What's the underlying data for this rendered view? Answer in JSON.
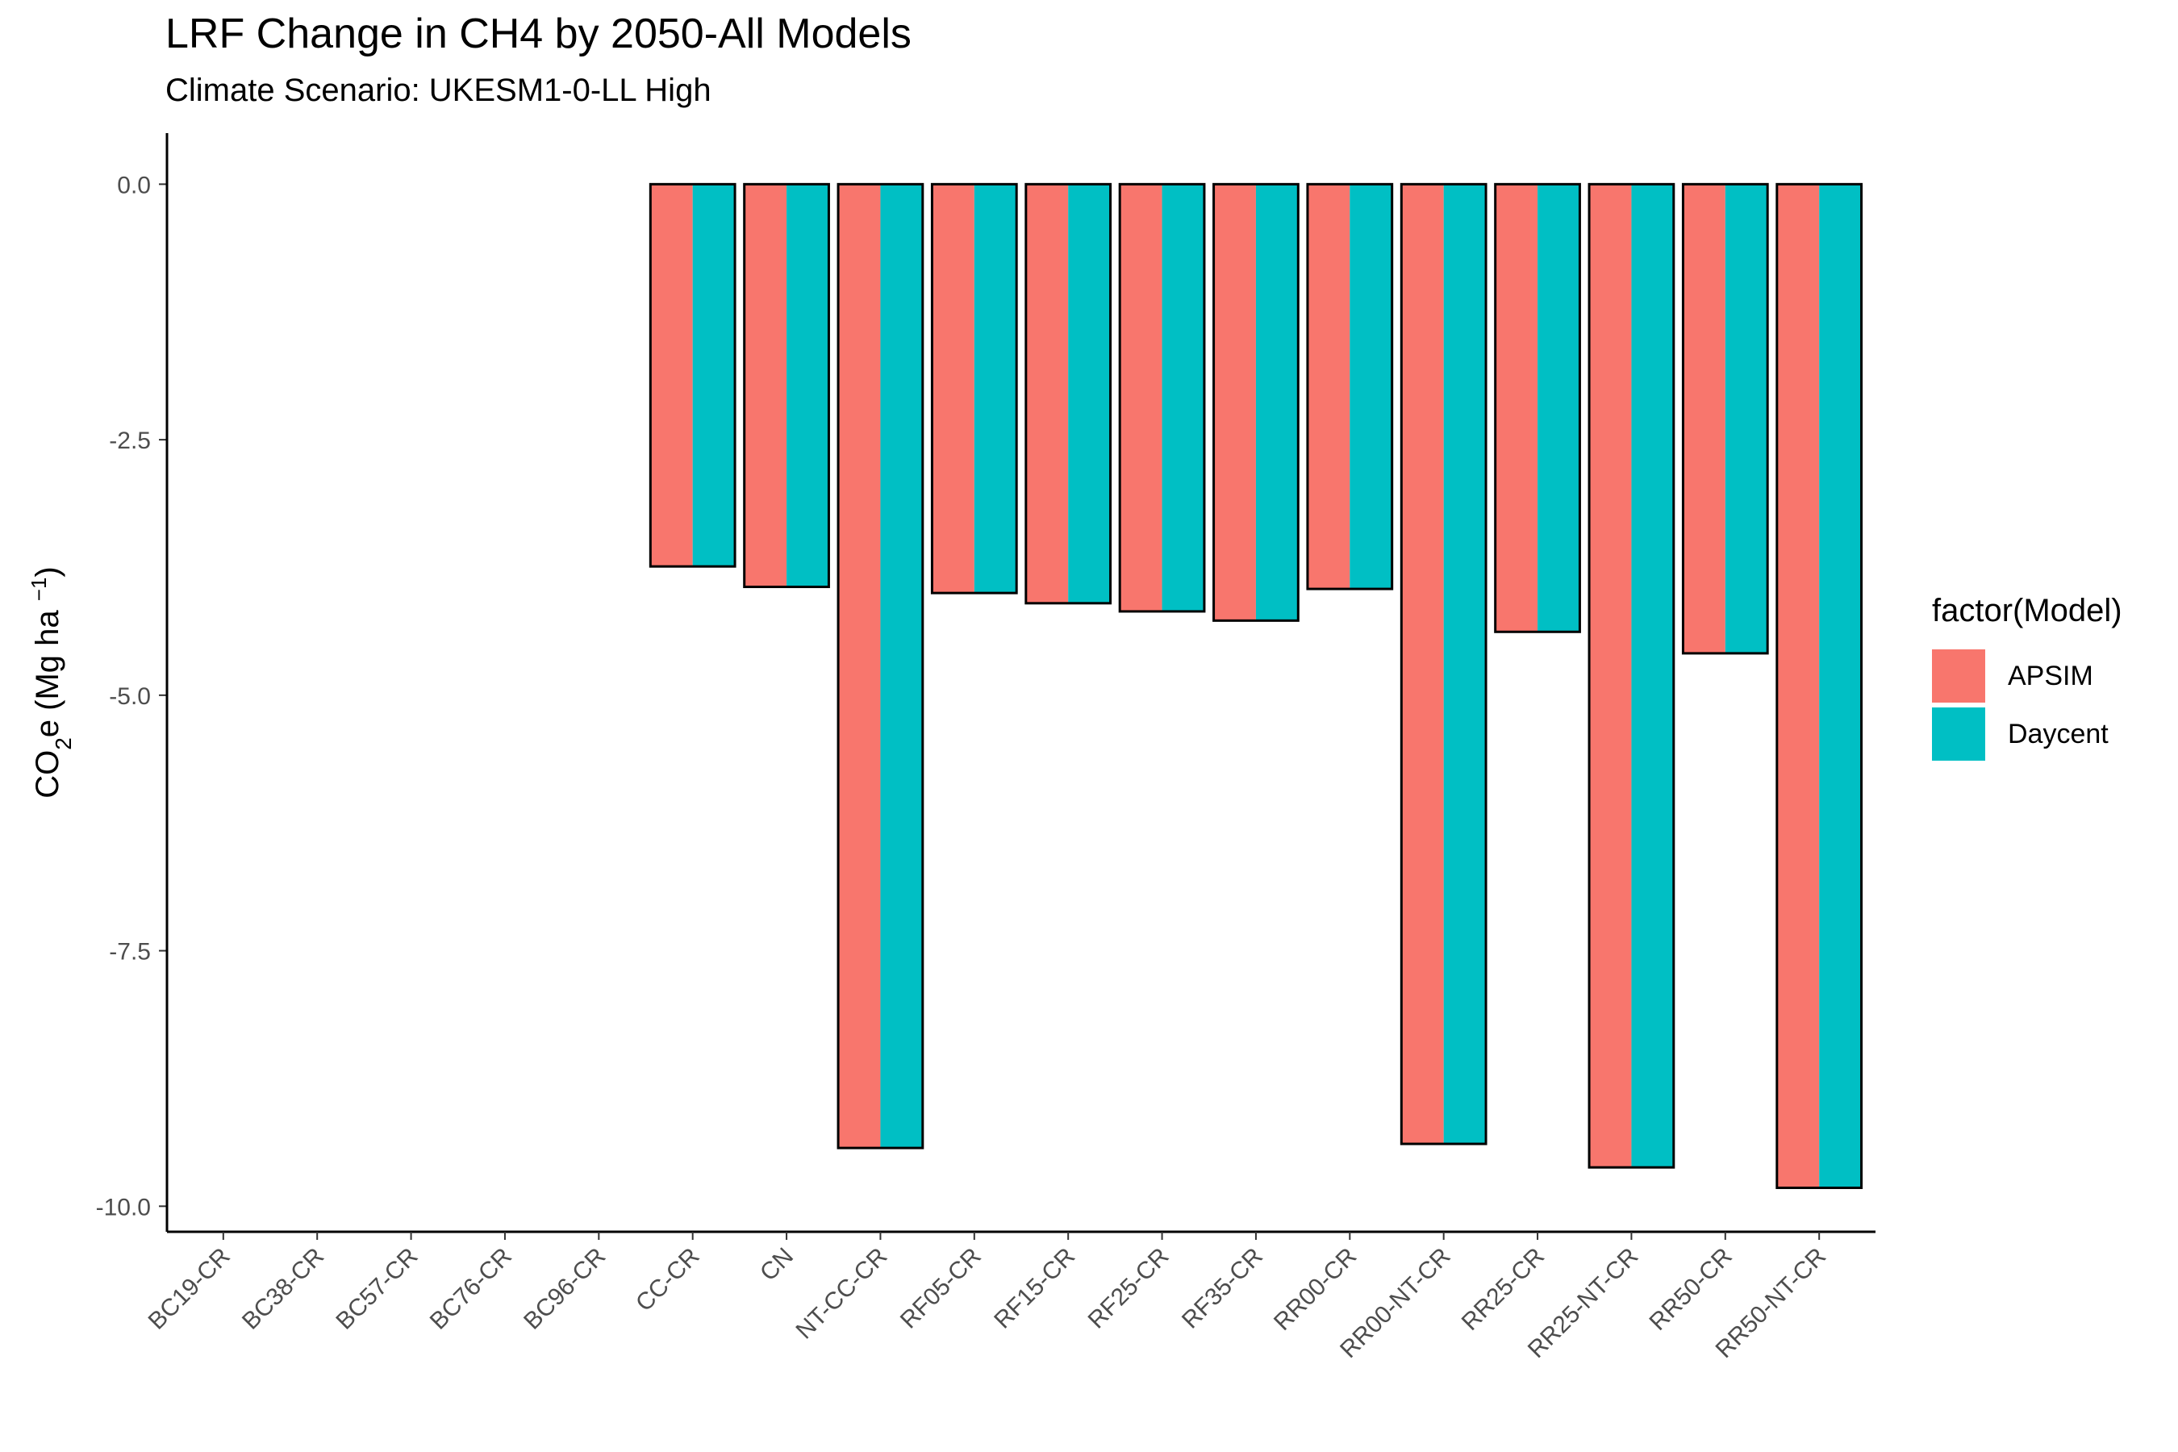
{
  "chart_data": {
    "type": "bar",
    "title": "LRF Change in CH4 by 2050-All Models",
    "subtitle": "Climate Scenario: UKESM1-0-LL High",
    "xlabel": "",
    "ylabel": "CO2e (Mg ha -1)",
    "ylabel_parts": {
      "main": "CO",
      "sub": "2",
      "after": "e (Mg ha ",
      "sup": "−1",
      "close": ")"
    },
    "ylim": [
      -10.25,
      0.5
    ],
    "yticks": [
      0.0,
      -2.5,
      -5.0,
      -7.5,
      -10.0
    ],
    "ytick_labels": [
      "0.0",
      "-2.5",
      "-5.0",
      "-7.5",
      "-10.0"
    ],
    "grid": false,
    "legend_title": "factor(Model)",
    "legend_position": "right",
    "categories": [
      "BC19-CR",
      "BC38-CR",
      "BC57-CR",
      "BC76-CR",
      "BC96-CR",
      "CC-CR",
      "CN",
      "NT-CC-CR",
      "RF05-CR",
      "RF15-CR",
      "RF25-CR",
      "RF35-CR",
      "RR00-CR",
      "RR00-NT-CR",
      "RR25-CR",
      "RR25-NT-CR",
      "RR50-CR",
      "RR50-NT-CR"
    ],
    "series": [
      {
        "name": "APSIM",
        "color": "#F8766D",
        "values": [
          null,
          null,
          null,
          null,
          null,
          -3.74,
          -3.94,
          -9.43,
          -4.0,
          -4.1,
          -4.18,
          -4.27,
          -3.96,
          -9.39,
          -4.38,
          -9.62,
          -4.59,
          -9.82
        ]
      },
      {
        "name": "Daycent",
        "color": "#00BFC4",
        "values": [
          null,
          null,
          null,
          null,
          null,
          -3.74,
          -3.94,
          -9.43,
          -4.0,
          -4.1,
          -4.18,
          -4.27,
          -3.96,
          -9.39,
          -4.38,
          -9.62,
          -4.59,
          -9.82
        ]
      }
    ]
  }
}
